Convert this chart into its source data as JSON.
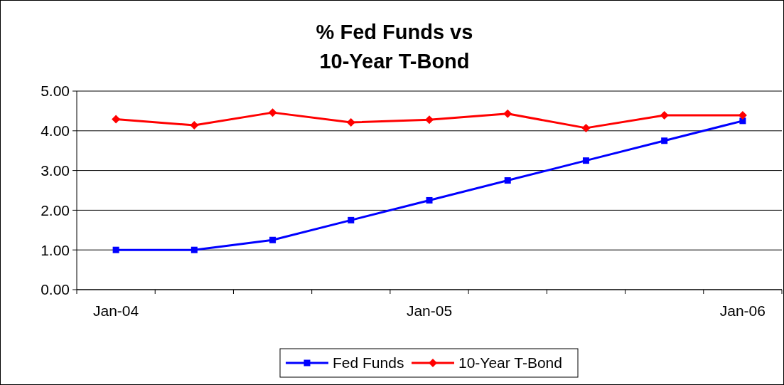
{
  "chart_data": {
    "type": "line",
    "title": "% Fed Funds vs 10-Year T-Bond",
    "categories": [
      "Jan-04",
      null,
      null,
      null,
      "Jan-05",
      null,
      null,
      null,
      "Jan-06"
    ],
    "series": [
      {
        "name": "Fed Funds",
        "color": "#0000ff",
        "marker": "square",
        "values": [
          1.0,
          1.0,
          1.25,
          1.75,
          2.25,
          2.75,
          3.25,
          3.75,
          4.25
        ]
      },
      {
        "name": "10-Year T-Bond",
        "color": "#ff0000",
        "marker": "diamond",
        "values": [
          4.29,
          4.14,
          4.46,
          4.21,
          4.28,
          4.43,
          4.07,
          4.39,
          4.39
        ]
      }
    ],
    "ylim": [
      0,
      5
    ],
    "yticks": [
      {
        "value": 0,
        "label": "0.00"
      },
      {
        "value": 1,
        "label": "1.00"
      },
      {
        "value": 2,
        "label": "2.00"
      },
      {
        "value": 3,
        "label": "3.00"
      },
      {
        "value": 4,
        "label": "4.00"
      },
      {
        "value": 5,
        "label": "5.00"
      }
    ],
    "grid": "y",
    "legend": "bottom"
  }
}
